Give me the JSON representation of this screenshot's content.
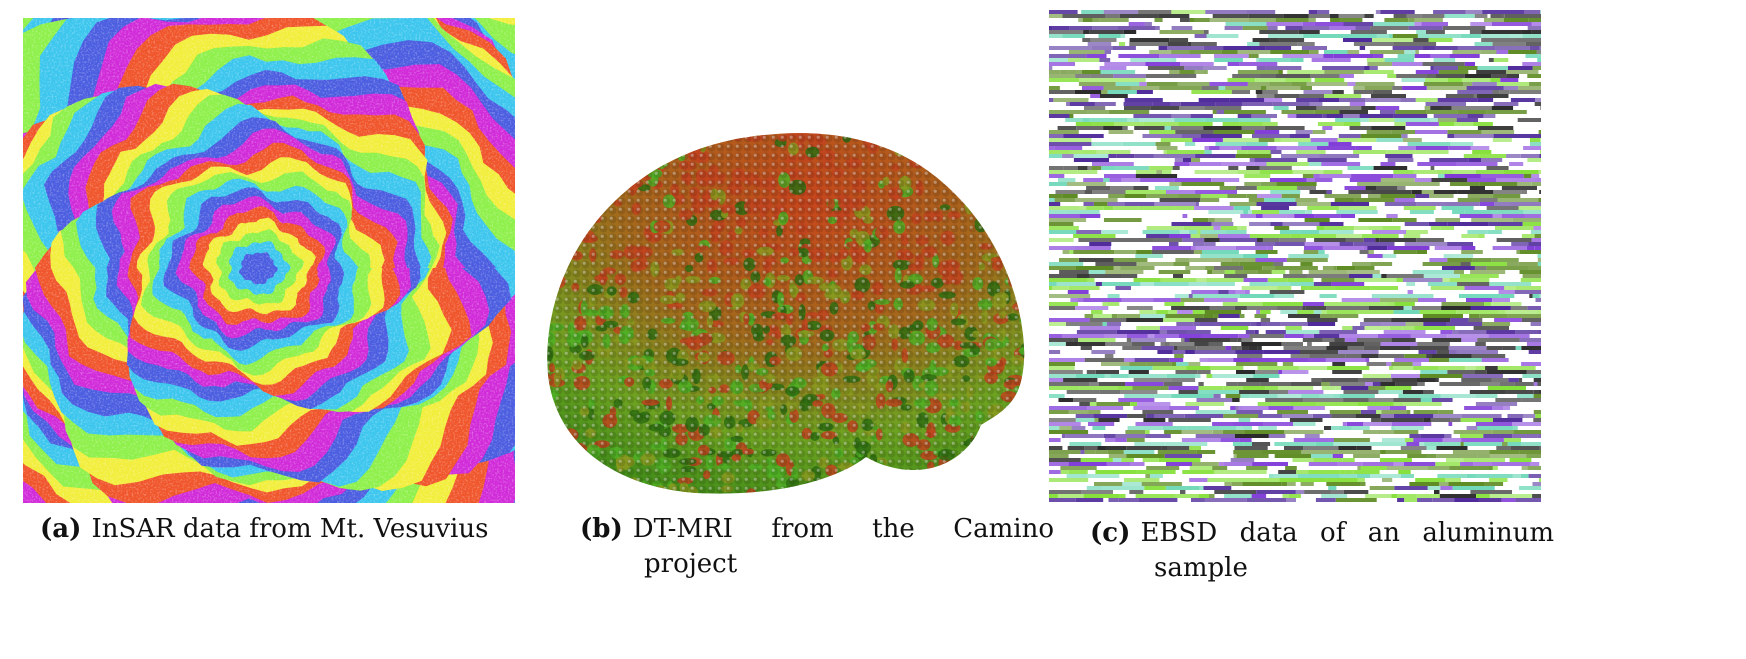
{
  "figure": {
    "panels": [
      {
        "label": "(a)",
        "caption": "InSAR data from Mt. Vesuvius",
        "image": "insar-interferogram-image",
        "colors": [
          "#d12bd9",
          "#4b5de0",
          "#3cc6ee",
          "#8ef04a",
          "#f2ee3c",
          "#f0552b"
        ]
      },
      {
        "label": "(b)",
        "caption": "DT-MRI from the Camino project",
        "image": "dt-mri-glyph-rendering-image",
        "colors": [
          "#c1441e",
          "#8a9a1e",
          "#4fb024",
          "#2f6f12"
        ]
      },
      {
        "label": "(c)",
        "caption": "EBSD data of an aluminum sample",
        "image": "ebsd-orientation-map-image",
        "colors": [
          "#86e03a",
          "#5d8a22",
          "#7f3ad8",
          "#4f2a9a",
          "#6fd8b8",
          "#2b2b2b"
        ]
      }
    ]
  }
}
